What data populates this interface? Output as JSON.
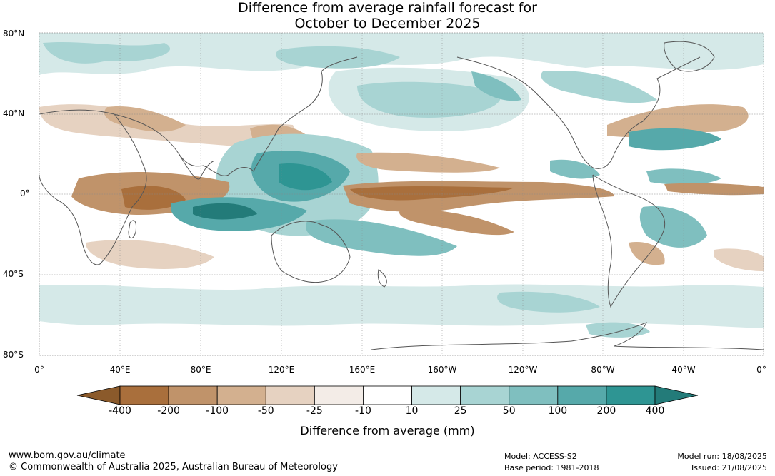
{
  "title": {
    "line1": "Difference from average rainfall forecast for",
    "line2": "October to December 2025"
  },
  "axes": {
    "lat_labels": [
      "80°N",
      "40°N",
      "0°",
      "40°S",
      "80°S"
    ],
    "lon_labels": [
      "0°",
      "40°E",
      "80°E",
      "120°E",
      "160°E",
      "160°W",
      "120°W",
      "80°W",
      "40°W",
      "0°"
    ]
  },
  "colorbar": {
    "ticks": [
      "-400",
      "-200",
      "-100",
      "-50",
      "-25",
      "-10",
      "10",
      "25",
      "50",
      "100",
      "200",
      "400"
    ],
    "colors": [
      "#8b5a2b",
      "#a96f3c",
      "#c0936a",
      "#d3b08f",
      "#e6d2c1",
      "#f3ece7",
      "#ffffff",
      "#d5e9e8",
      "#a8d4d3",
      "#7fbfbf",
      "#56a9aa",
      "#2e9593",
      "#237b79"
    ],
    "title": "Difference from average (mm)"
  },
  "footer": {
    "url": "www.bom.gov.au/climate",
    "copyright": "© Commonwealth of Australia 2025, Australian Bureau of Meteorology",
    "model": "Model: ACCESS-S2",
    "base_period": "Base period: 1981-2018",
    "model_run": "Model run: 18/08/2025",
    "issued": "Issued: 21/08/2025"
  }
}
